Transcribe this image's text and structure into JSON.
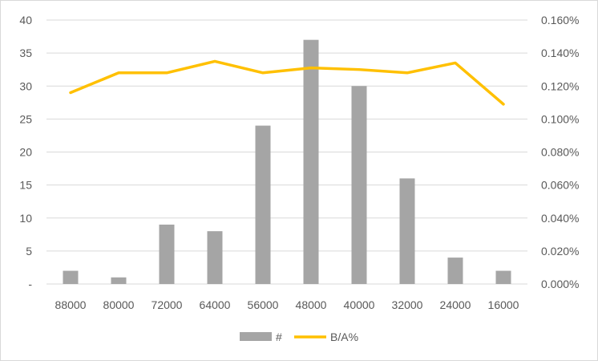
{
  "chart_data": {
    "type": "bar",
    "categories": [
      "88000",
      "80000",
      "72000",
      "64000",
      "56000",
      "48000",
      "40000",
      "32000",
      "24000",
      "16000"
    ],
    "series": [
      {
        "name": "#",
        "type": "bar",
        "axis": "left",
        "color": "#a5a5a5",
        "values": [
          2,
          1,
          9,
          8,
          24,
          37,
          30,
          16,
          4,
          2
        ]
      },
      {
        "name": "B/A%",
        "type": "line",
        "axis": "right",
        "color": "#ffc000",
        "values": [
          0.00116,
          0.00128,
          0.00128,
          0.00135,
          0.00128,
          0.00131,
          0.0013,
          0.00128,
          0.00134,
          0.00109
        ]
      }
    ],
    "y_left": {
      "ylim": [
        0,
        40
      ],
      "ticks": [
        0,
        5,
        10,
        15,
        20,
        25,
        30,
        35,
        40
      ],
      "tick_labels": [
        "-",
        "5",
        "10",
        "15",
        "20",
        "25",
        "30",
        "35",
        "40"
      ]
    },
    "y_right": {
      "ylim": [
        0,
        0.0016
      ],
      "ticks": [
        0,
        0.0002,
        0.0004,
        0.0006,
        0.0008,
        0.001,
        0.0012,
        0.0014,
        0.0016
      ],
      "tick_labels": [
        "0.000%",
        "0.020%",
        "0.040%",
        "0.060%",
        "0.080%",
        "0.100%",
        "0.120%",
        "0.140%",
        "0.160%"
      ]
    },
    "grid": true,
    "legend": "bottom",
    "title": "",
    "xlabel": "",
    "ylabel": ""
  }
}
